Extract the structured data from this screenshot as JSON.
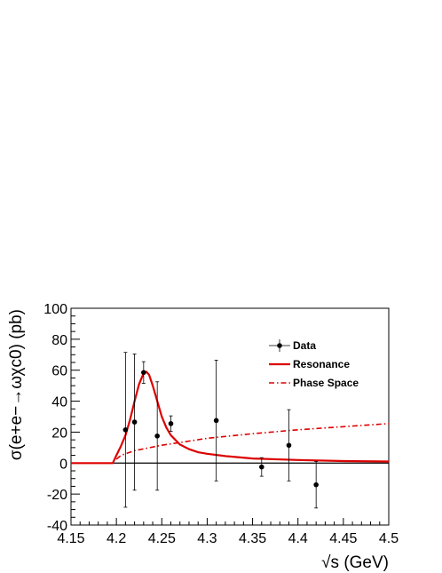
{
  "chart_data": {
    "type": "scatter",
    "xlabel": "√s (GeV)",
    "ylabel": "σ(e+e−→ωχc0) (pb)",
    "xlim": [
      4.15,
      4.5
    ],
    "ylim": [
      -40,
      100
    ],
    "x_ticks": [
      "4.15",
      "4.2",
      "4.25",
      "4.3",
      "4.35",
      "4.4",
      "4.45",
      "4.5"
    ],
    "y_ticks": [
      "-40",
      "-20",
      "0",
      "20",
      "40",
      "60",
      "80",
      "100"
    ],
    "legend_position": "top-right",
    "series": [
      {
        "name": "Data",
        "kind": "points-with-errors",
        "color": "#000000",
        "points": [
          {
            "x": 4.21,
            "y": 21.5,
            "err": 50
          },
          {
            "x": 4.22,
            "y": 26.5,
            "err": 44
          },
          {
            "x": 4.23,
            "y": 58.5,
            "err": 7
          },
          {
            "x": 4.245,
            "y": 17.5,
            "err": 35
          },
          {
            "x": 4.26,
            "y": 25.5,
            "err": 5
          },
          {
            "x": 4.31,
            "y": 27.5,
            "err": 39
          },
          {
            "x": 4.36,
            "y": -2.5,
            "err": 6
          },
          {
            "x": 4.39,
            "y": 11.5,
            "err": 23
          },
          {
            "x": 4.42,
            "y": -14,
            "err": 15
          }
        ]
      },
      {
        "name": "Resonance",
        "kind": "line-solid",
        "color": "#dd0000",
        "x": [
          4.15,
          4.196,
          4.2,
          4.205,
          4.21,
          4.215,
          4.22,
          4.225,
          4.23,
          4.233,
          4.236,
          4.24,
          4.245,
          4.25,
          4.255,
          4.26,
          4.27,
          4.28,
          4.29,
          4.3,
          4.32,
          4.35,
          4.4,
          4.45,
          4.5
        ],
        "y": [
          0,
          0,
          5,
          11,
          18,
          28,
          40,
          51,
          58,
          59,
          57,
          50,
          40,
          30,
          23,
          18,
          12,
          9,
          7,
          6,
          4.5,
          3,
          2,
          1.3,
          1
        ]
      },
      {
        "name": "Phase Space",
        "kind": "line-dashdot",
        "color": "#dd0000",
        "x": [
          4.2,
          4.205,
          4.22,
          4.25,
          4.3,
          4.35,
          4.4,
          4.45,
          4.5
        ],
        "y": [
          2.5,
          5,
          8,
          11.5,
          16,
          19,
          21.5,
          23.5,
          25.5
        ]
      }
    ]
  }
}
